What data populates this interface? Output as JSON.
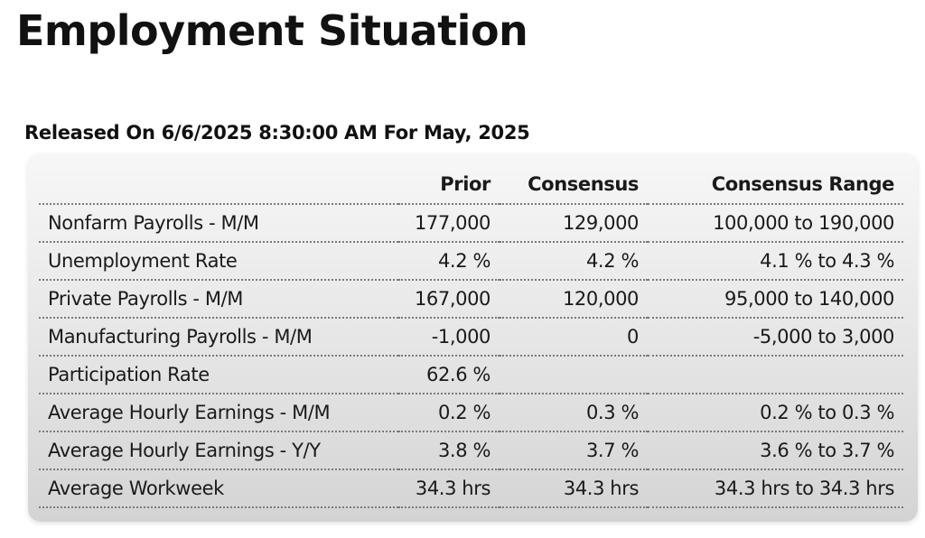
{
  "page": {
    "title": "Employment Situation",
    "released": "Released On 6/6/2025 8:30:00 AM For May, 2025"
  },
  "table": {
    "headers": {
      "indicator": "",
      "prior": "Prior",
      "consensus": "Consensus",
      "range": "Consensus Range"
    },
    "rows": [
      {
        "indicator": "Nonfarm Payrolls - M/M",
        "prior": "177,000",
        "consensus": "129,000",
        "range": "100,000  to 190,000"
      },
      {
        "indicator": "Unemployment Rate",
        "prior": "4.2 %",
        "consensus": "4.2 %",
        "range": "4.1 % to 4.3 %"
      },
      {
        "indicator": "Private Payrolls - M/M",
        "prior": "167,000",
        "consensus": "120,000",
        "range": "95,000  to 140,000"
      },
      {
        "indicator": "Manufacturing Payrolls - M/M",
        "prior": "-1,000",
        "consensus": "0",
        "range": "-5,000  to 3,000"
      },
      {
        "indicator": "Participation Rate",
        "prior": "62.6 %",
        "consensus": "",
        "range": ""
      },
      {
        "indicator": "Average Hourly Earnings - M/M",
        "prior": "0.2 %",
        "consensus": "0.3 %",
        "range": "0.2 % to 0.3 %"
      },
      {
        "indicator": "Average Hourly Earnings - Y/Y",
        "prior": "3.8 %",
        "consensus": "3.7 %",
        "range": "3.6 % to 3.7 %"
      },
      {
        "indicator": "Average Workweek",
        "prior": "34.3 hrs",
        "consensus": "34.3 hrs",
        "range": "34.3 hrs to 34.3 hrs"
      }
    ]
  }
}
